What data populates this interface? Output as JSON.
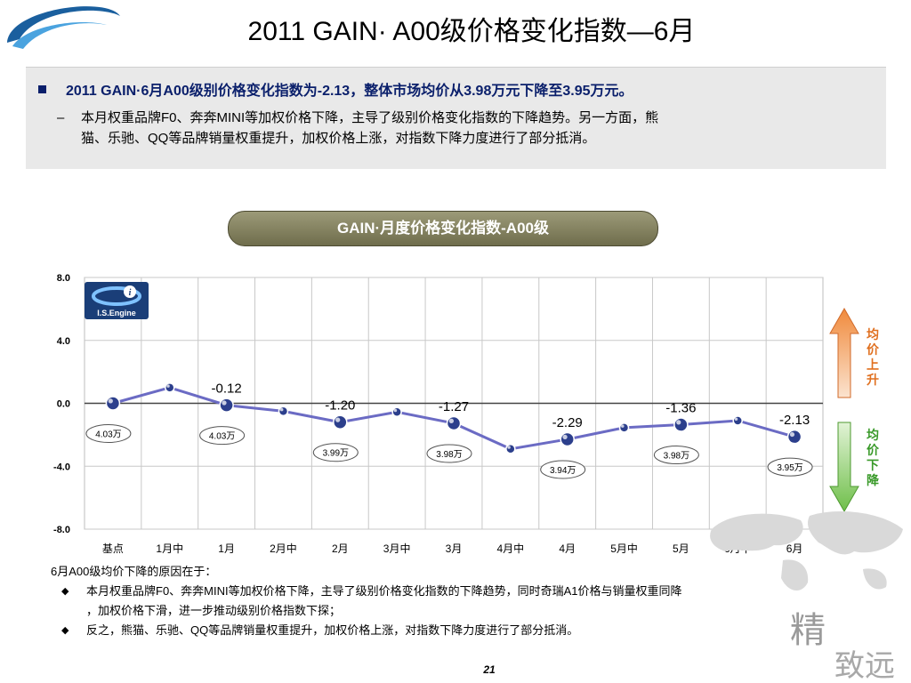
{
  "header": {
    "title": "2011 GAIN· A00级价格变化指数—6月"
  },
  "summary": {
    "headline": "2011 GAIN·6月A00级别价格变化指数为-2.13，整体市场均价从3.98万元下降至3.95万元。",
    "detail_line1": "本月权重品牌F0、奔奔MINI等加权价格下降，主导了级别价格变化指数的下降趋势。另一方面，熊",
    "detail_line2": "猫、乐驰、QQ等品牌销量权重提升，加权价格上涨，对指数下降力度进行了部分抵消。"
  },
  "logo": {
    "name": "I.S.Engine"
  },
  "arrows": {
    "up_label": "均价上升",
    "down_label": "均价下降"
  },
  "chart_data": {
    "type": "line",
    "title": "GAIN·月度价格变化指数-A00级",
    "categories": [
      "基点",
      "1月中",
      "1月",
      "2月中",
      "2月",
      "3月中",
      "3月",
      "4月中",
      "4月",
      "5月中",
      "5月",
      "6月中",
      "6月"
    ],
    "values": [
      0.0,
      1.0,
      -0.12,
      -0.5,
      -1.2,
      -0.55,
      -1.27,
      -2.9,
      -2.29,
      -1.55,
      -1.36,
      -1.1,
      -2.13
    ],
    "value_labels": [
      "",
      "",
      "-0.12",
      "",
      "-1.20",
      "",
      "-1.27",
      "",
      "-2.29",
      "",
      "-1.36",
      "",
      "-2.13"
    ],
    "price_labels": [
      "4.03万",
      "",
      "4.03万",
      "",
      "3.99万",
      "",
      "3.98万",
      "",
      "3.94万",
      "",
      "3.98万",
      "",
      "3.95万"
    ],
    "y_ticks": [
      "8.0",
      "4.0",
      "0.0",
      "-4.0",
      "-8.0"
    ],
    "ylim": [
      -8,
      8
    ],
    "line_color": "#6b6bc4",
    "grid": true
  },
  "reasons": {
    "heading": "6月A00级均价下降的原因在于：",
    "item1_line1": "本月权重品牌F0、奔奔MINI等加权价格下降，主导了级别价格变化指数的下降趋势，同时奇瑞A1价格与销量权重同降",
    "item1_line2": "，加权价格下滑，进一步推动级别价格指数下探；",
    "item2": "反之，熊猫、乐驰、QQ等品牌销量权重提升，加权价格上涨，对指数下降力度进行了部分抵消。"
  },
  "footer": {
    "page": "21",
    "brand_char1": "精",
    "brand_chars2": "致远"
  }
}
